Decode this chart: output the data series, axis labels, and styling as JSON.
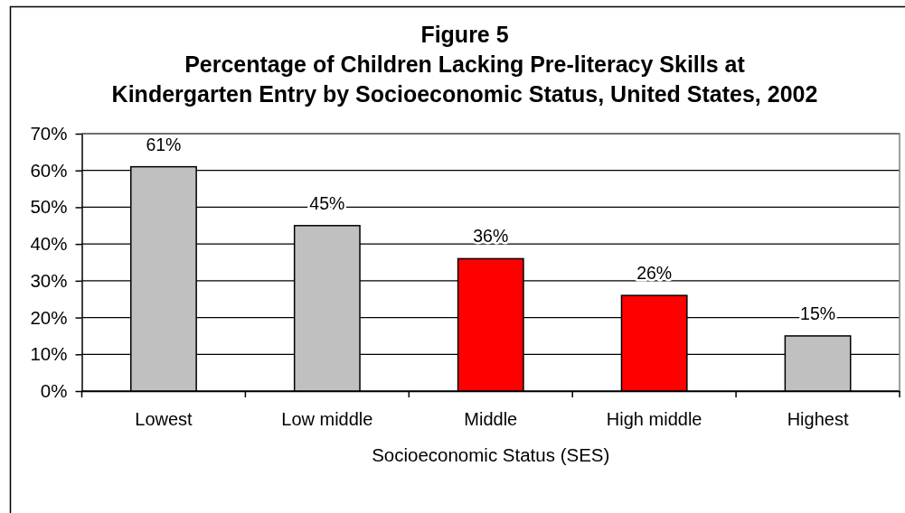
{
  "chart_data": {
    "type": "bar",
    "title": "Figure 5",
    "subtitle": "Percentage of Children Lacking Pre-literacy Skills at\nKindergarten Entry by Socioeconomic Status, United States, 2002",
    "xlabel": "Socioeconomic Status (SES)",
    "categories": [
      "Lowest",
      "Low middle",
      "Middle",
      "High middle",
      "Highest"
    ],
    "values": [
      61,
      45,
      36,
      26,
      15
    ],
    "colors": [
      "#c0c0c0",
      "#c0c0c0",
      "#ff0000",
      "#ff0000",
      "#c0c0c0"
    ],
    "value_labels": [
      "61%",
      "45%",
      "36%",
      "26%",
      "15%"
    ],
    "ylim": [
      0,
      70
    ],
    "yticks": [
      {
        "value": 0,
        "label": "0%"
      },
      {
        "value": 10,
        "label": "10%"
      },
      {
        "value": 20,
        "label": "20%"
      },
      {
        "value": 30,
        "label": "30%"
      },
      {
        "value": 40,
        "label": "40%"
      },
      {
        "value": 50,
        "label": "50%"
      },
      {
        "value": 60,
        "label": "60%"
      },
      {
        "value": 70,
        "label": "70%"
      }
    ],
    "grid": "y"
  }
}
